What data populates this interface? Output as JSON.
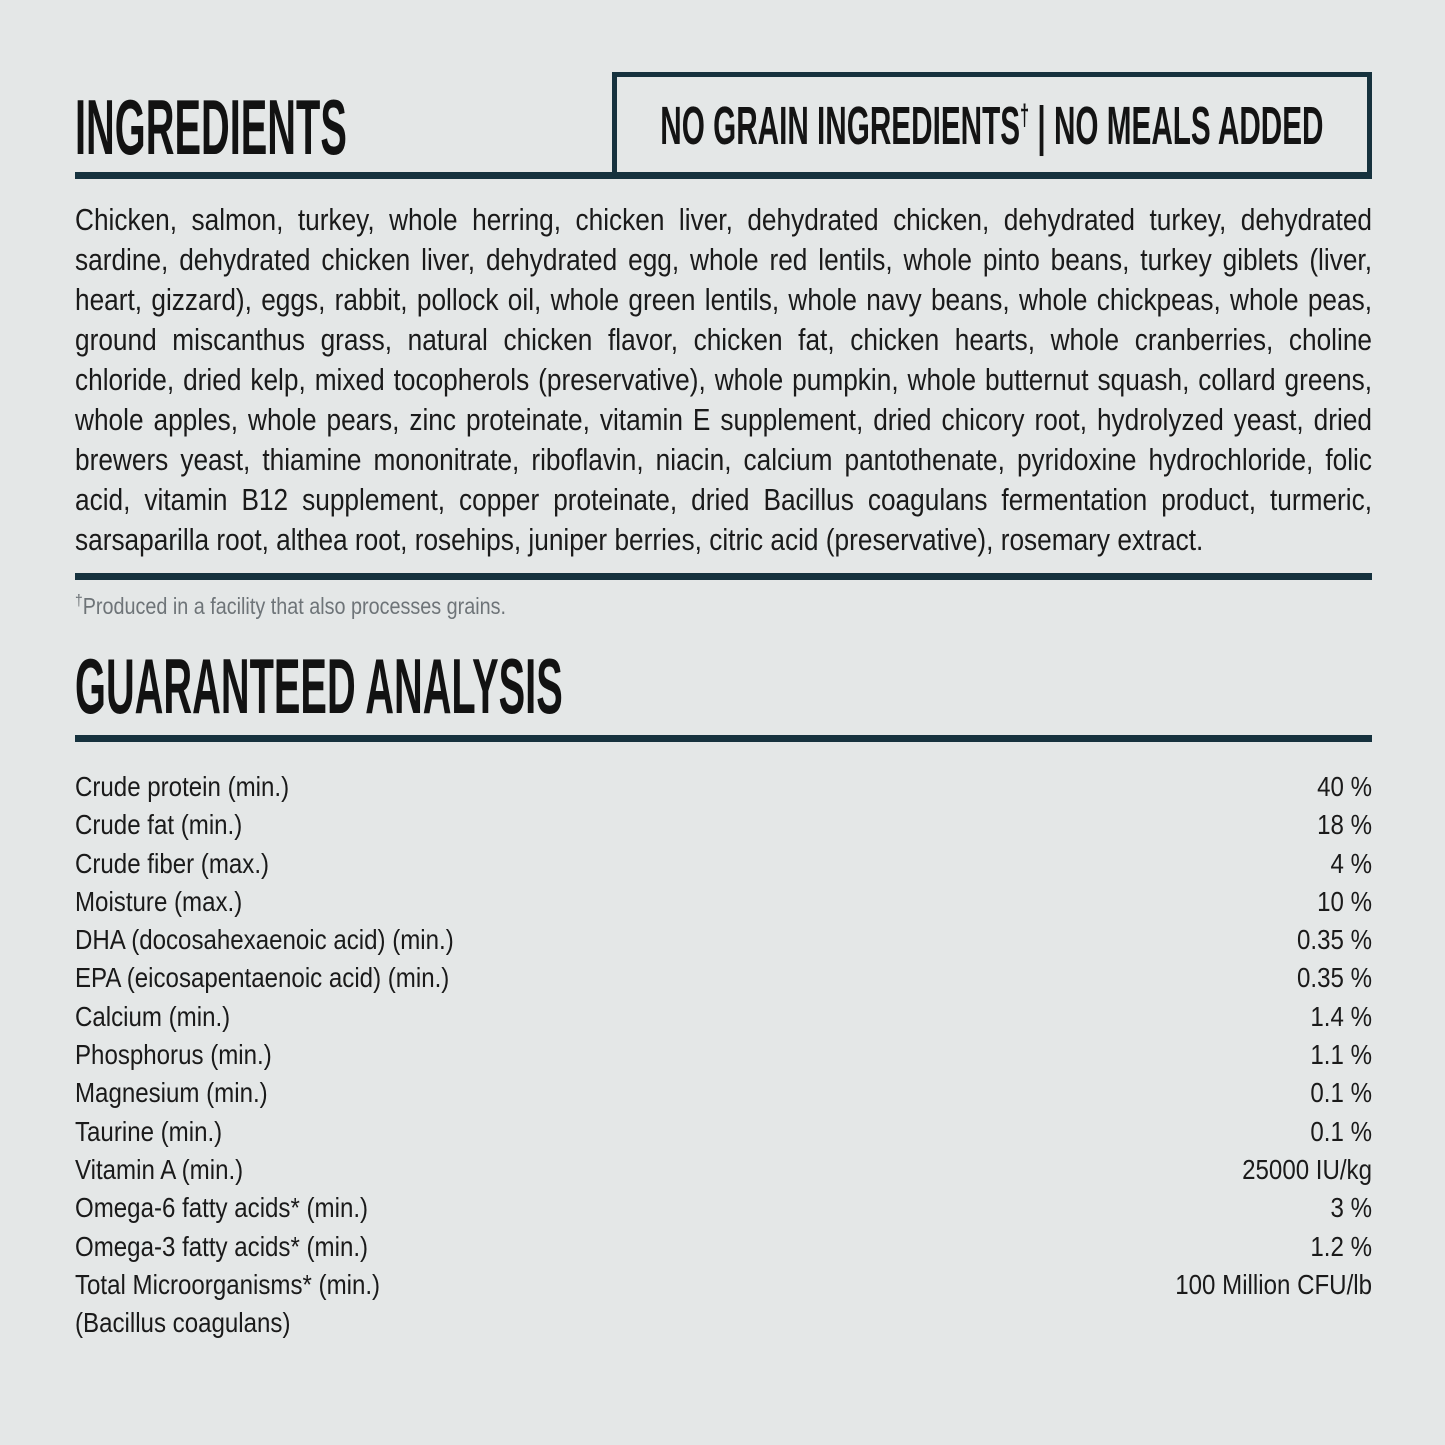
{
  "page": {
    "background": "#e4e7e7",
    "accent_color": "#16323e",
    "text_color": "#1a1a1a",
    "muted_color": "#6e7478"
  },
  "ingredients": {
    "title": "INGREDIENTS",
    "badge": {
      "part1": "NO GRAIN INGREDIENTS",
      "dagger": "†",
      "part2": "| NO MEALS ADDED"
    },
    "text": "Chicken, salmon, turkey, whole herring, chicken liver, dehydrated chicken, dehydrated turkey, dehydrated sardine, dehydrated chicken liver, dehydrated egg, whole red lentils, whole pinto beans, turkey giblets (liver, heart, gizzard), eggs, rabbit, pollock oil, whole green lentils, whole navy beans, whole chickpeas, whole peas, ground miscanthus grass, natural chicken flavor, chicken fat, chicken hearts, whole cranberries, choline chloride, dried kelp, mixed tocopherols (preservative), whole pumpkin, whole butternut squash, collard greens, whole apples, whole pears, zinc proteinate, vitamin E supplement, dried chicory root, hydrolyzed yeast, dried brewers yeast, thiamine mononitrate, riboflavin, niacin, calcium pantothenate, pyridoxine hydrochloride, folic acid, vitamin B12 supplement, copper proteinate, dried Bacillus coagulans fermentation product, turmeric, sarsaparilla root, althea root, rosehips, juniper berries, citric acid (preservative), rosemary extract.",
    "footnote": {
      "dagger": "†",
      "text": "Produced in a facility that also processes grains."
    }
  },
  "analysis": {
    "title": "GUARANTEED ANALYSIS",
    "rows": [
      {
        "label": "Crude protein (min.)",
        "value": "40 %"
      },
      {
        "label": "Crude fat (min.)",
        "value": "18 %"
      },
      {
        "label": "Crude fiber (max.)",
        "value": "4 %"
      },
      {
        "label": "Moisture (max.)",
        "value": "10 %"
      },
      {
        "label": "DHA (docosahexaenoic acid) (min.)",
        "value": "0.35 %"
      },
      {
        "label": "EPA (eicosapentaenoic acid) (min.)",
        "value": "0.35 %"
      },
      {
        "label": "Calcium (min.)",
        "value": "1.4 %"
      },
      {
        "label": "Phosphorus (min.)",
        "value": "1.1 %"
      },
      {
        "label": "Magnesium (min.)",
        "value": "0.1 %"
      },
      {
        "label": "Taurine (min.)",
        "value": "0.1 %"
      },
      {
        "label": "Vitamin A (min.)",
        "value": "25000 IU/kg"
      },
      {
        "label": "Omega-6 fatty acids* (min.)",
        "value": "3 %"
      },
      {
        "label": "Omega-3 fatty acids* (min.)",
        "value": "1.2 %"
      },
      {
        "label": "Total Microorganisms* (min.)",
        "value": "100 Million CFU/lb"
      },
      {
        "label": "(Bacillus coagulans)",
        "value": ""
      }
    ]
  }
}
